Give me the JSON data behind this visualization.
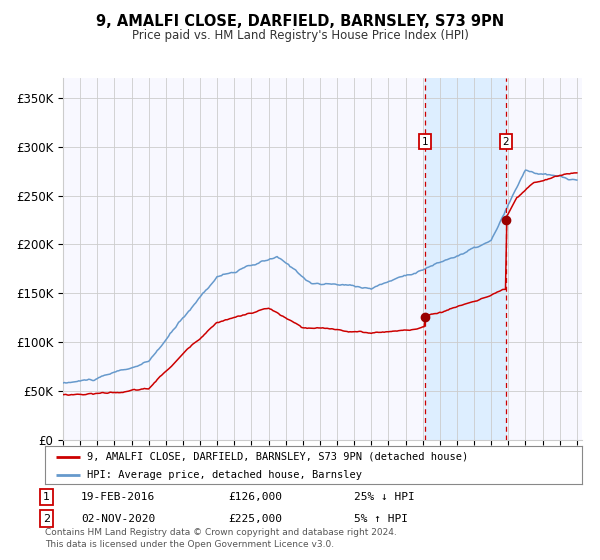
{
  "title": "9, AMALFI CLOSE, DARFIELD, BARNSLEY, S73 9PN",
  "subtitle": "Price paid vs. HM Land Registry's House Price Index (HPI)",
  "legend_line1": "9, AMALFI CLOSE, DARFIELD, BARNSLEY, S73 9PN (detached house)",
  "legend_line2": "HPI: Average price, detached house, Barnsley",
  "annotation1_label": "1",
  "annotation1_date": "19-FEB-2016",
  "annotation1_price": "£126,000",
  "annotation1_hpi": "25% ↓ HPI",
  "annotation2_label": "2",
  "annotation2_date": "02-NOV-2020",
  "annotation2_price": "£225,000",
  "annotation2_hpi": "5% ↑ HPI",
  "footer": "Contains HM Land Registry data © Crown copyright and database right 2024.\nThis data is licensed under the Open Government Licence v3.0.",
  "hpi_color": "#6699cc",
  "price_color": "#cc0000",
  "marker_color": "#990000",
  "vline_color": "#cc0000",
  "shade_color": "#ddeeff",
  "annotation_box_color": "#cc0000",
  "grid_color": "#cccccc",
  "plot_bg_color": "#f8f8ff",
  "ylim": [
    0,
    370000
  ],
  "year_start": 1995,
  "year_end": 2025,
  "sale1_year": 2016.12,
  "sale2_year": 2020.84,
  "sale1_price": 126000,
  "sale2_price": 225000
}
